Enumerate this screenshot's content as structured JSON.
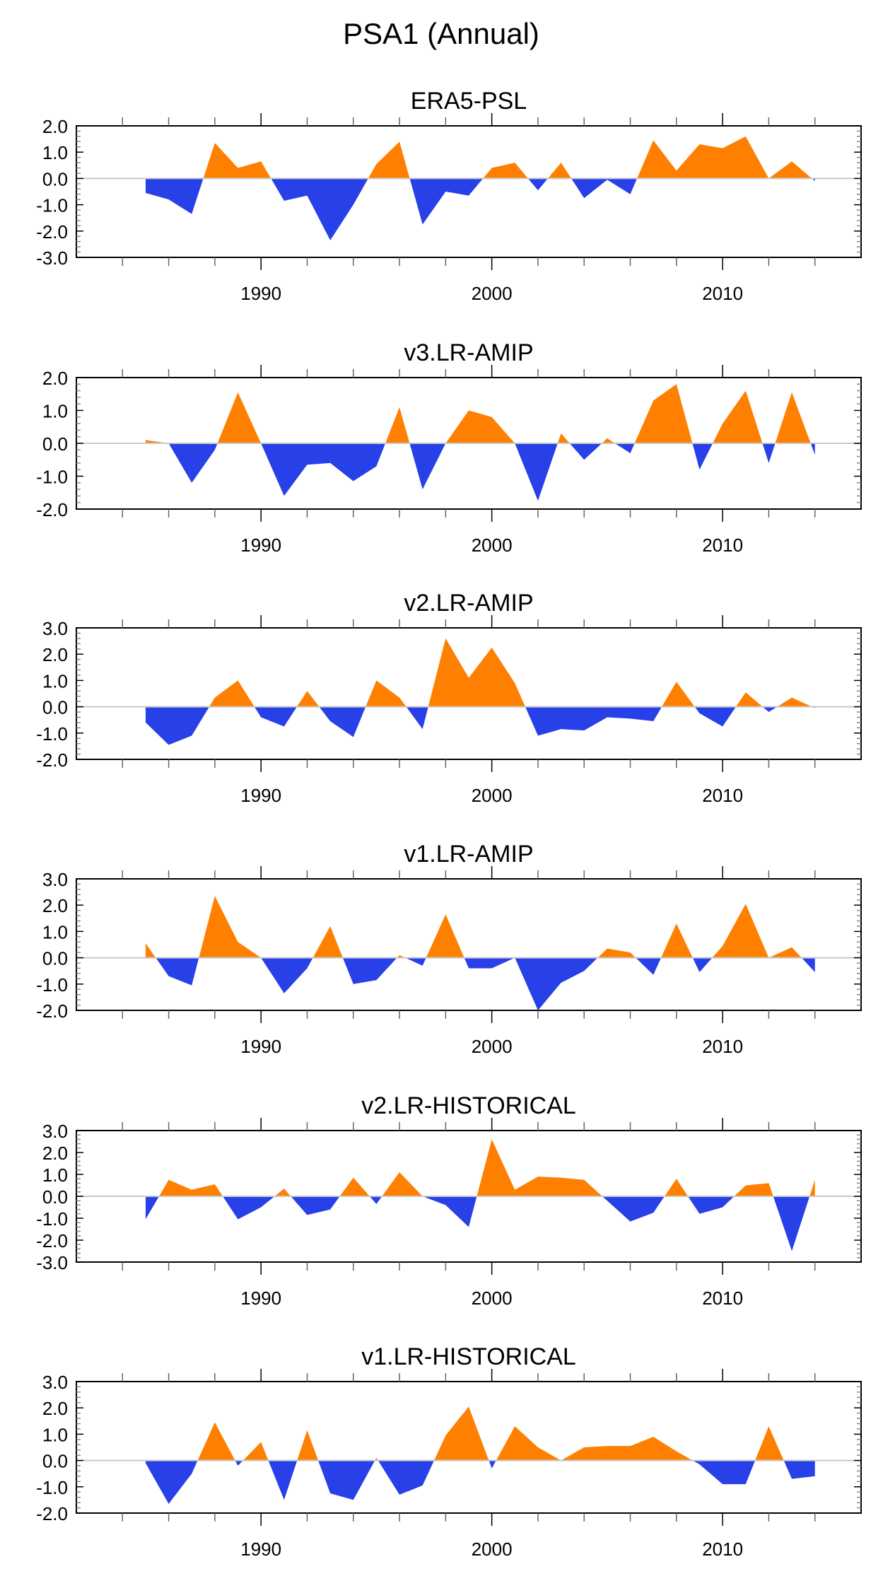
{
  "chart_data": {
    "type": "area",
    "title": "PSA1 (Annual)",
    "x": [
      1985,
      1986,
      1987,
      1988,
      1989,
      1990,
      1991,
      1992,
      1993,
      1994,
      1995,
      1996,
      1997,
      1998,
      1999,
      2000,
      2001,
      2002,
      2003,
      2004,
      2005,
      2006,
      2007,
      2008,
      2009,
      2010,
      2011,
      2012,
      2013,
      2014
    ],
    "xlim": [
      1982,
      2016
    ],
    "xticks": [
      1990,
      2000,
      2010
    ],
    "positive_color": "#ff8000",
    "negative_color": "#2840e8",
    "panels": [
      {
        "title": "ERA5-PSL",
        "ylim": [
          -3.0,
          2.0
        ],
        "yticks": [
          "-3.0",
          "-2.0",
          "-1.0",
          "0.0",
          "1.0",
          "2.0"
        ],
        "values": [
          -0.55,
          -0.8,
          -1.35,
          1.35,
          0.4,
          0.65,
          -0.85,
          -0.65,
          -2.35,
          -1.0,
          0.55,
          1.4,
          -1.75,
          -0.5,
          -0.65,
          0.4,
          0.6,
          -0.45,
          0.6,
          -0.75,
          -0.05,
          -0.6,
          1.45,
          0.3,
          1.3,
          1.15,
          1.6,
          0.0,
          0.65,
          -0.1
        ]
      },
      {
        "title": "v3.LR-AMIP",
        "ylim": [
          -2.0,
          2.0
        ],
        "yticks": [
          "-2.0",
          "-1.0",
          "0.0",
          "1.0",
          "2.0"
        ],
        "values": [
          0.1,
          0.0,
          -1.2,
          -0.2,
          1.55,
          0.0,
          -1.6,
          -0.65,
          -0.6,
          -1.15,
          -0.7,
          1.1,
          -1.4,
          0.0,
          1.0,
          0.8,
          0.0,
          -1.75,
          0.3,
          -0.5,
          0.15,
          -0.3,
          1.3,
          1.8,
          -0.8,
          0.6,
          1.6,
          -0.6,
          1.55,
          -0.35
        ]
      },
      {
        "title": "v2.LR-AMIP",
        "ylim": [
          -2.0,
          3.0
        ],
        "yticks": [
          "-2.0",
          "-1.0",
          "0.0",
          "1.0",
          "2.0",
          "3.0"
        ],
        "values": [
          -0.6,
          -1.45,
          -1.1,
          0.35,
          1.0,
          -0.4,
          -0.75,
          0.6,
          -0.55,
          -1.15,
          1.0,
          0.35,
          -0.85,
          2.6,
          1.1,
          2.25,
          0.9,
          -1.1,
          -0.85,
          -0.9,
          -0.4,
          -0.45,
          -0.55,
          0.95,
          -0.25,
          -0.75,
          0.55,
          -0.2,
          0.35,
          -0.05
        ]
      },
      {
        "title": "v1.LR-AMIP",
        "ylim": [
          -2.0,
          3.0
        ],
        "yticks": [
          "-2.0",
          "-1.0",
          "0.0",
          "1.0",
          "2.0",
          "3.0"
        ],
        "values": [
          0.55,
          -0.7,
          -1.05,
          2.35,
          0.6,
          0.0,
          -1.35,
          -0.4,
          1.2,
          -1.0,
          -0.85,
          0.1,
          -0.3,
          1.65,
          -0.4,
          -0.4,
          0.0,
          -2.0,
          -0.95,
          -0.5,
          0.35,
          0.2,
          -0.65,
          1.3,
          -0.55,
          0.45,
          2.05,
          0.0,
          0.4,
          -0.55
        ]
      },
      {
        "title": "v2.LR-HISTORICAL",
        "ylim": [
          -3.0,
          3.0
        ],
        "yticks": [
          "-3.0",
          "-2.0",
          "-1.0",
          "0.0",
          "1.0",
          "2.0",
          "3.0"
        ],
        "values": [
          -1.05,
          0.75,
          0.3,
          0.55,
          -1.05,
          -0.5,
          0.35,
          -0.85,
          -0.6,
          0.85,
          -0.35,
          1.1,
          0.0,
          -0.4,
          -1.4,
          2.6,
          0.3,
          0.9,
          0.85,
          0.75,
          -0.2,
          -1.15,
          -0.75,
          0.8,
          -0.8,
          -0.5,
          0.5,
          0.6,
          -2.5,
          0.75
        ]
      },
      {
        "title": "v1.LR-HISTORICAL",
        "ylim": [
          -2.0,
          3.0
        ],
        "yticks": [
          "-2.0",
          "-1.0",
          "0.0",
          "1.0",
          "2.0",
          "3.0"
        ],
        "values": [
          -0.1,
          -1.65,
          -0.5,
          1.45,
          -0.2,
          0.7,
          -1.5,
          1.15,
          -1.25,
          -1.5,
          0.1,
          -1.3,
          -0.95,
          0.95,
          2.05,
          -0.3,
          1.3,
          0.5,
          0.0,
          0.5,
          0.55,
          0.55,
          0.9,
          0.35,
          -0.15,
          -0.9,
          -0.9,
          1.3,
          -0.7,
          -0.6
        ]
      }
    ]
  }
}
